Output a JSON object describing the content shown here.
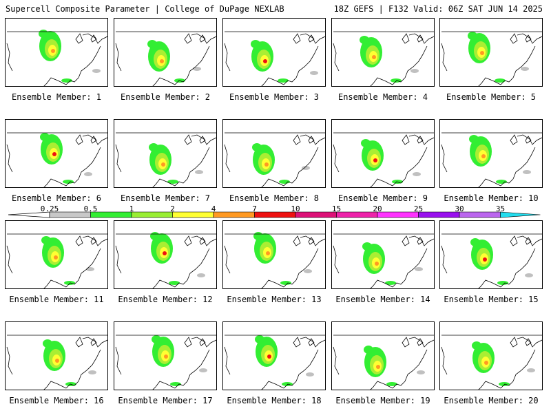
{
  "header": {
    "left": "Supercell Composite Parameter | College of DuPage NEXLAB",
    "right": "18Z GEFS | F132 Valid: 06Z SAT JUN 14 2025"
  },
  "panels": [
    {
      "caption": "Ensemble Member: 1"
    },
    {
      "caption": "Ensemble Member: 2"
    },
    {
      "caption": "Ensemble Member: 3"
    },
    {
      "caption": "Ensemble Member: 4"
    },
    {
      "caption": "Ensemble Member: 5"
    },
    {
      "caption": "Ensemble Member: 6"
    },
    {
      "caption": "Ensemble Member: 7"
    },
    {
      "caption": "Ensemble Member: 8"
    },
    {
      "caption": "Ensemble Member: 9"
    },
    {
      "caption": "Ensemble Member: 10"
    },
    {
      "caption": "Ensemble Member: 11"
    },
    {
      "caption": "Ensemble Member: 12"
    },
    {
      "caption": "Ensemble Member: 13"
    },
    {
      "caption": "Ensemble Member: 14"
    },
    {
      "caption": "Ensemble Member: 15"
    },
    {
      "caption": "Ensemble Member: 16"
    },
    {
      "caption": "Ensemble Member: 17"
    },
    {
      "caption": "Ensemble Member: 18"
    },
    {
      "caption": "Ensemble Member: 19"
    },
    {
      "caption": "Ensemble Member: 20"
    }
  ],
  "colorbar": {
    "labels": [
      "0.25",
      "0.5",
      "1",
      "2",
      "4",
      "7",
      "10",
      "15",
      "20",
      "25",
      "30",
      "35"
    ],
    "colors": [
      "#c8c8c8",
      "#33ee33",
      "#99ee33",
      "#ffff33",
      "#ff9922",
      "#ee1111",
      "#dd1177",
      "#ee22aa",
      "#ff33ff",
      "#9911ee",
      "#bb66ee",
      "#22ddee"
    ]
  },
  "field_colors": {
    "gray": "#c0c0c0",
    "green": "#33ee33",
    "lightgreen": "#aaee33",
    "yellow": "#ffff33",
    "orange": "#ff9922",
    "red": "#ee1111"
  }
}
